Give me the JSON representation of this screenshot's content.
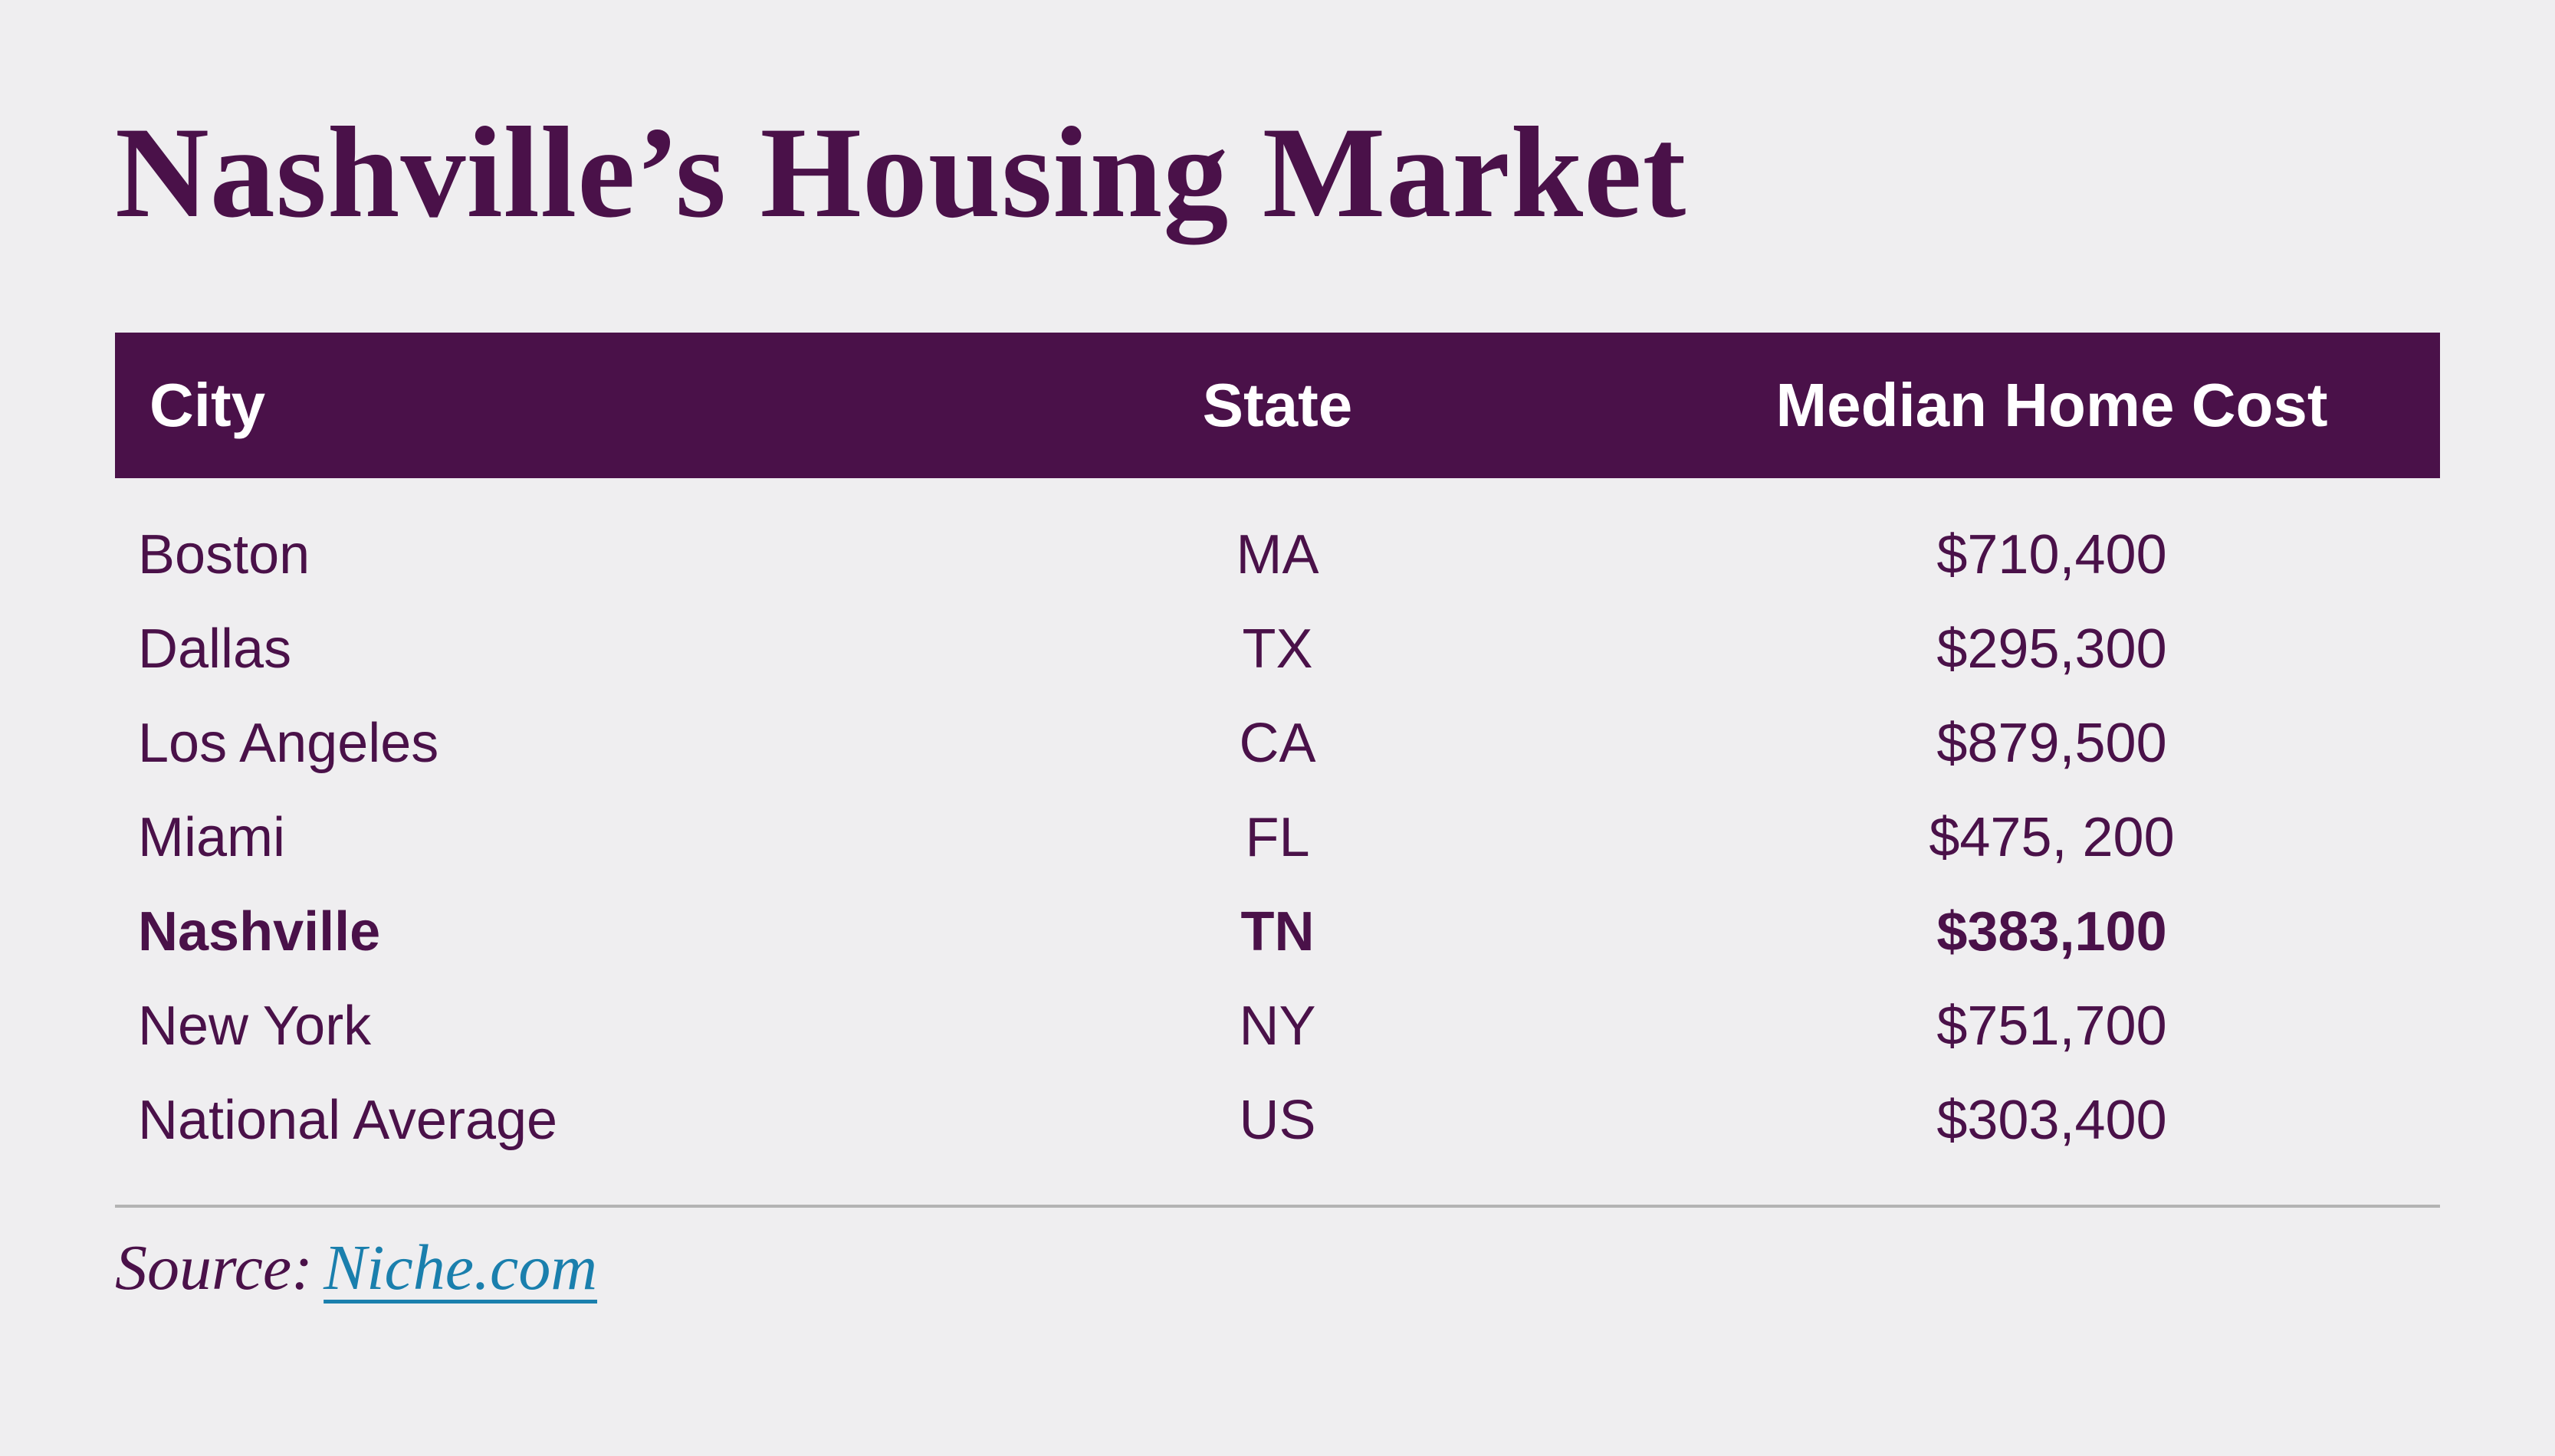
{
  "page": {
    "title": "Nashville’s Housing Market",
    "background_color": "#efeef0",
    "accent_color": "#4a1149",
    "link_color": "#1a7fad",
    "divider_color": "#b3b3b3",
    "header_text_color": "#ffffff"
  },
  "table": {
    "headers": {
      "city": "City",
      "state": "State",
      "cost": "Median Home Cost"
    },
    "rows": [
      {
        "city": "Boston",
        "state": "MA",
        "cost": "$710,400",
        "highlight": false
      },
      {
        "city": "Dallas",
        "state": "TX",
        "cost": "$295,300",
        "highlight": false
      },
      {
        "city": "Los Angeles",
        "state": "CA",
        "cost": "$879,500",
        "highlight": false
      },
      {
        "city": "Miami",
        "state": "FL",
        "cost": "$475, 200",
        "highlight": false
      },
      {
        "city": "Nashville",
        "state": "TN",
        "cost": "$383,100",
        "highlight": true
      },
      {
        "city": "New York",
        "state": "NY",
        "cost": "$751,700",
        "highlight": false
      },
      {
        "city": "National Average",
        "state": "US",
        "cost": "$303,400",
        "highlight": false
      }
    ]
  },
  "source": {
    "label": "Source:",
    "link_text": "Niche.com"
  }
}
